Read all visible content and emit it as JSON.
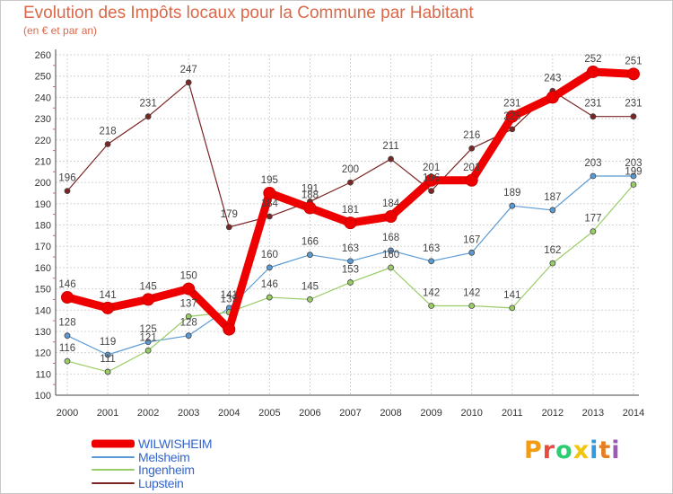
{
  "header": {
    "title": "Evolution des Impôts locaux pour la Commune par Habitant",
    "subtitle": "(en € et par an)"
  },
  "brand": {
    "letters": [
      "P",
      "r",
      "o",
      "x",
      "i",
      "t",
      "i"
    ],
    "colors": [
      "#f39c12",
      "#e74c3c",
      "#2ecc71",
      "#f1c40f",
      "#3498db",
      "#e67e22",
      "#9b59b6"
    ]
  },
  "chart_data": {
    "type": "line",
    "title": "Evolution des Impôts locaux pour la Commune par Habitant",
    "ylabel": "(en € et par an)",
    "xlabel": "",
    "categories": [
      "2000",
      "2001",
      "2002",
      "2003",
      "2004",
      "2005",
      "2006",
      "2007",
      "2008",
      "2009",
      "2010",
      "2011",
      "2012",
      "2013",
      "2014"
    ],
    "ylim": [
      100,
      260
    ],
    "yticks": [
      100,
      110,
      120,
      130,
      140,
      150,
      160,
      170,
      180,
      190,
      200,
      210,
      220,
      230,
      240,
      250,
      260
    ],
    "grid": true,
    "legend_position": "bottom-left",
    "series": [
      {
        "name": "WILWISHEIM",
        "color": "#ee0000",
        "values": [
          146,
          141,
          145,
          150,
          131,
          195,
          188,
          181,
          184,
          201,
          201,
          231,
          240,
          252,
          251
        ],
        "labels": [
          "146",
          "141",
          "145",
          "150",
          "",
          "195",
          "188",
          "181",
          "184",
          "201",
          "201",
          "231",
          "",
          "252",
          "251"
        ]
      },
      {
        "name": "Melsheim",
        "color": "#5b9bd5",
        "values": [
          128,
          119,
          125,
          128,
          141,
          160,
          166,
          163,
          168,
          163,
          167,
          189,
          187,
          203,
          203
        ],
        "labels": [
          "128",
          "119",
          "125",
          "128",
          "141",
          "160",
          "166",
          "163",
          "168",
          "163",
          "167",
          "189",
          "187",
          "203",
          "203"
        ]
      },
      {
        "name": "Ingenheim",
        "color": "#99cc66",
        "values": [
          116,
          111,
          121,
          137,
          139,
          146,
          145,
          153,
          160,
          142,
          142,
          141,
          162,
          177,
          199
        ],
        "labels": [
          "116",
          "111",
          "121",
          "137",
          "139",
          "146",
          "145",
          "153",
          "160",
          "142",
          "142",
          "141",
          "162",
          "177",
          "199"
        ]
      },
      {
        "name": "Lupstein",
        "color": "#7b2525",
        "values": [
          196,
          218,
          231,
          247,
          179,
          184,
          191,
          200,
          211,
          196,
          216,
          225,
          243,
          231,
          231
        ],
        "labels": [
          "196",
          "218",
          "231",
          "247",
          "179",
          "184",
          "191",
          "200",
          "211",
          "196",
          "216",
          "225",
          "243",
          "231",
          "231"
        ]
      }
    ]
  }
}
